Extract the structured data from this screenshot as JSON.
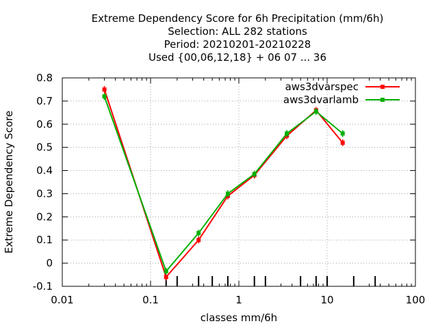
{
  "chart_data": {
    "type": "line",
    "title_lines": [
      "Extreme Dependency Score  for 6h Precipitation (mm/6h)",
      "Selection: ALL    282 stations",
      "Period: 20210201-20210228",
      "Used {00,06,12,18} + 06 07 ... 36"
    ],
    "xlabel": "classes mm/6h",
    "ylabel": "Extreme Dependency Score",
    "xscale": "log",
    "xlim": [
      0.01,
      100
    ],
    "ylim": [
      -0.1,
      0.8
    ],
    "xticks": [
      0.01,
      0.1,
      1,
      10,
      100
    ],
    "xtick_labels": [
      "0.01",
      "0.1",
      "1",
      "10",
      "100"
    ],
    "yticks": [
      -0.1,
      0,
      0.1,
      0.2,
      0.3,
      0.4,
      0.5,
      0.6,
      0.7,
      0.8
    ],
    "ytick_labels": [
      "-0.1",
      "0",
      "0.1",
      "0.2",
      "0.3",
      "0.4",
      "0.5",
      "0.6",
      "0.7",
      "0.8"
    ],
    "class_marks": [
      0.15,
      0.2,
      0.35,
      0.5,
      0.75,
      1.5,
      2,
      5,
      7.5,
      10,
      20,
      35
    ],
    "grid": true,
    "legend_position": "top-right",
    "series": [
      {
        "name": "aws3dvarspec",
        "color": "#ff0000",
        "x": [
          0.03,
          0.15,
          0.35,
          0.75,
          1.5,
          3.5,
          7.5,
          15
        ],
        "y": [
          0.75,
          -0.06,
          0.1,
          0.29,
          0.38,
          0.55,
          0.66,
          0.52
        ]
      },
      {
        "name": "aws3dvarlamb",
        "color": "#00b000",
        "x": [
          0.03,
          0.15,
          0.35,
          0.75,
          1.5,
          3.5,
          7.5,
          15
        ],
        "y": [
          0.72,
          -0.035,
          0.13,
          0.3,
          0.385,
          0.56,
          0.655,
          0.56
        ]
      }
    ]
  }
}
